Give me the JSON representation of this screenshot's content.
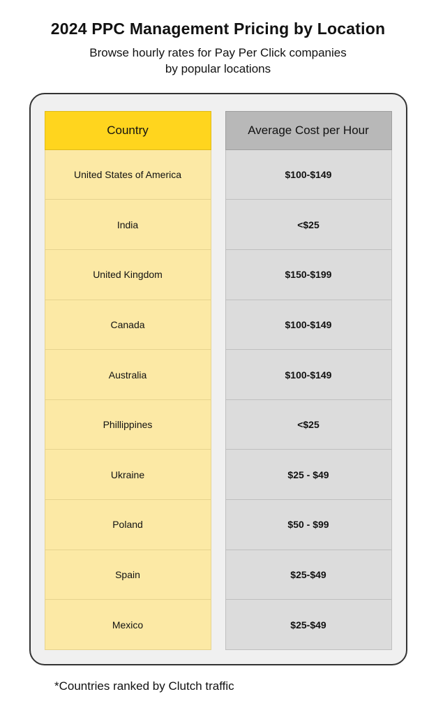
{
  "title": "2024 PPC Management Pricing by Location",
  "subtitle_line1": "Browse hourly rates for Pay Per Click companies",
  "subtitle_line2": "by popular locations",
  "footnote": "*Countries ranked by Clutch traffic",
  "table": {
    "country_header": "Country",
    "cost_header": "Average Cost per Hour",
    "country_header_bg": "#ffd51e",
    "cost_header_bg": "#b8b8b8",
    "country_cell_bg": "#fce9a5",
    "cost_cell_bg": "#dcdcdc",
    "card_bg": "#f0f0f0",
    "card_border": "#333333",
    "rows": [
      {
        "country": "United States of America",
        "cost": "$100-$149"
      },
      {
        "country": "India",
        "cost": "<$25"
      },
      {
        "country": "United Kingdom",
        "cost": "$150-$199"
      },
      {
        "country": "Canada",
        "cost": "$100-$149"
      },
      {
        "country": "Australia",
        "cost": "$100-$149"
      },
      {
        "country": "Phillippines",
        "cost": "<$25"
      },
      {
        "country": "Ukraine",
        "cost": "$25 - $49"
      },
      {
        "country": "Poland",
        "cost": "$50 - $99"
      },
      {
        "country": "Spain",
        "cost": "$25-$49"
      },
      {
        "country": "Mexico",
        "cost": "$25-$49"
      }
    ]
  }
}
